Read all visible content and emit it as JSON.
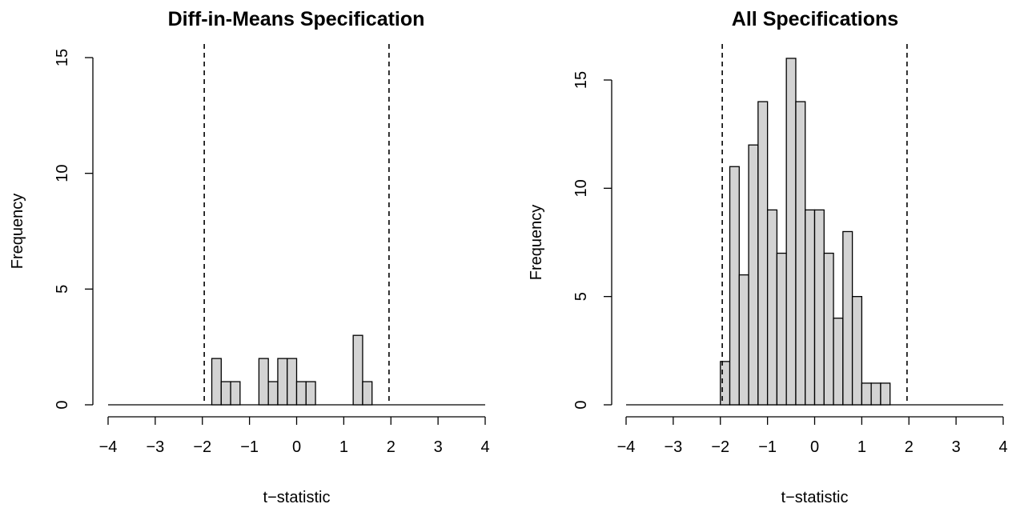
{
  "chart_data": [
    {
      "type": "bar",
      "title": "Diff-in-Means Specification",
      "xlabel": "t−statistic",
      "ylabel": "Frequency",
      "xlim": [
        -4,
        4
      ],
      "ylim": [
        0,
        15
      ],
      "xticks": [
        "−4",
        "−3",
        "−2",
        "−1",
        "0",
        "1",
        "2",
        "3",
        "4"
      ],
      "yticks": [
        "0",
        "5",
        "10",
        "15"
      ],
      "bin_width": 0.2,
      "bins": [
        {
          "x0": -1.8,
          "count": 2
        },
        {
          "x0": -1.6,
          "count": 1
        },
        {
          "x0": -1.4,
          "count": 1
        },
        {
          "x0": -0.8,
          "count": 2
        },
        {
          "x0": -0.6,
          "count": 1
        },
        {
          "x0": -0.4,
          "count": 2
        },
        {
          "x0": -0.2,
          "count": 2
        },
        {
          "x0": 0.0,
          "count": 1
        },
        {
          "x0": 0.2,
          "count": 1
        },
        {
          "x0": 1.2,
          "count": 3
        },
        {
          "x0": 1.4,
          "count": 1
        }
      ],
      "reference_lines": [
        -1.96,
        1.96
      ]
    },
    {
      "type": "bar",
      "title": "All Specifications",
      "xlabel": "t−statistic",
      "ylabel": "Frequency",
      "xlim": [
        -4,
        4
      ],
      "ylim": [
        0,
        16
      ],
      "xticks": [
        "−4",
        "−3",
        "−2",
        "−1",
        "0",
        "1",
        "2",
        "3",
        "4"
      ],
      "yticks": [
        "0",
        "5",
        "10",
        "15"
      ],
      "bin_width": 0.2,
      "bins": [
        {
          "x0": -2.0,
          "count": 2
        },
        {
          "x0": -1.8,
          "count": 11
        },
        {
          "x0": -1.6,
          "count": 6
        },
        {
          "x0": -1.4,
          "count": 12
        },
        {
          "x0": -1.2,
          "count": 14
        },
        {
          "x0": -1.0,
          "count": 9
        },
        {
          "x0": -0.8,
          "count": 7
        },
        {
          "x0": -0.6,
          "count": 16
        },
        {
          "x0": -0.4,
          "count": 14
        },
        {
          "x0": -0.2,
          "count": 9
        },
        {
          "x0": 0.0,
          "count": 9
        },
        {
          "x0": 0.2,
          "count": 7
        },
        {
          "x0": 0.4,
          "count": 4
        },
        {
          "x0": 0.6,
          "count": 8
        },
        {
          "x0": 0.8,
          "count": 5
        },
        {
          "x0": 1.0,
          "count": 1
        },
        {
          "x0": 1.2,
          "count": 1
        },
        {
          "x0": 1.4,
          "count": 1
        }
      ],
      "reference_lines": [
        -1.96,
        1.96
      ]
    }
  ]
}
